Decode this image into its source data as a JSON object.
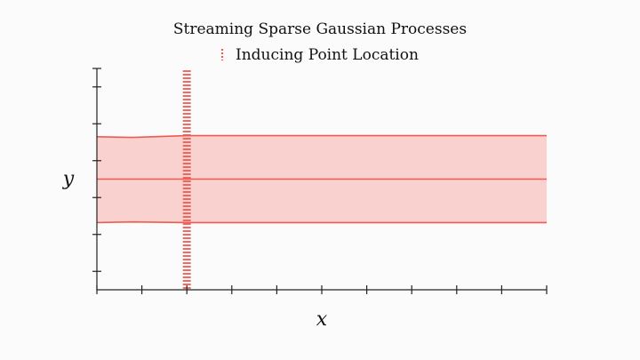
{
  "chart_data": {
    "type": "line",
    "title": "Streaming Sparse Gaussian Processes",
    "xlabel": "x",
    "ylabel": "y",
    "xlim": [
      0,
      10
    ],
    "ylim": [
      -3,
      3
    ],
    "x_ticks": [
      0,
      1,
      2,
      3,
      4,
      5,
      6,
      7,
      8,
      9,
      10
    ],
    "y_ticks": [
      -2.5,
      -1.5,
      -0.5,
      0.5,
      1.5,
      2.5
    ],
    "grid": false,
    "legend": {
      "placement": "top-center",
      "entries": [
        "Inducing Point Location"
      ]
    },
    "series": [
      {
        "name": "Inducing Point Location",
        "kind": "vertical-dotted-line",
        "x": 2
      }
    ],
    "band": {
      "x": [
        0,
        0.8,
        2,
        10
      ],
      "mean": [
        0,
        0,
        0,
        0
      ],
      "upper": [
        1.15,
        1.13,
        1.18,
        1.18
      ],
      "lower": [
        -1.18,
        -1.16,
        -1.18,
        -1.18
      ]
    },
    "colors": {
      "accent": "#f05a52",
      "band_fill": "#f8c9c6",
      "axes": "#222222"
    }
  }
}
